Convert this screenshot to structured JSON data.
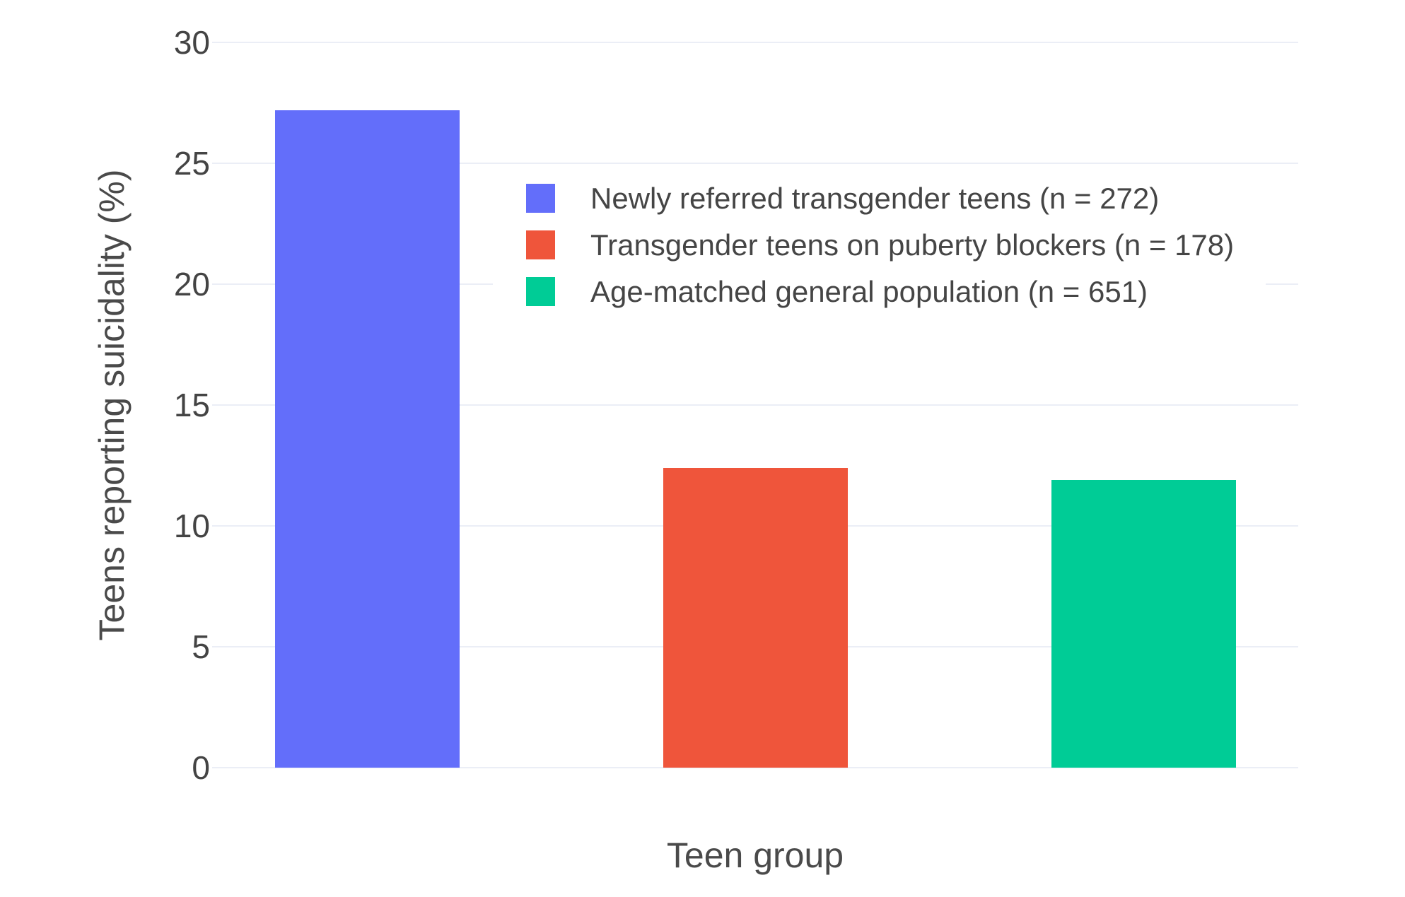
{
  "chart_data": {
    "type": "bar",
    "title": "",
    "xlabel": "Teen group",
    "ylabel": "Teens reporting suicidality (%)",
    "ylim": [
      0,
      30
    ],
    "yticks": [
      0,
      5,
      10,
      15,
      20,
      25,
      30
    ],
    "grid": true,
    "legend_position": "inside-top-right",
    "categories": [
      "Newly referred transgender teens",
      "Transgender teens on puberty blockers",
      "Age-matched general population"
    ],
    "x_tick_labels_visible": false,
    "series": [
      {
        "name": "Newly referred transgender teens (n = 272)",
        "n": 272,
        "value": 27.2,
        "color": "#636EFA"
      },
      {
        "name": "Transgender teens on puberty blockers (n = 178)",
        "n": 178,
        "value": 12.4,
        "color": "#EF553B"
      },
      {
        "name": "Age-matched general population (n = 651)",
        "n": 651,
        "value": 11.9,
        "color": "#00CC96"
      }
    ],
    "colors": {
      "background": "#ffffff",
      "gridline": "#EBEEF6",
      "tick_text": "#444444",
      "axis_title_text": "#4a4a4a",
      "legend_text": "#454545"
    }
  }
}
